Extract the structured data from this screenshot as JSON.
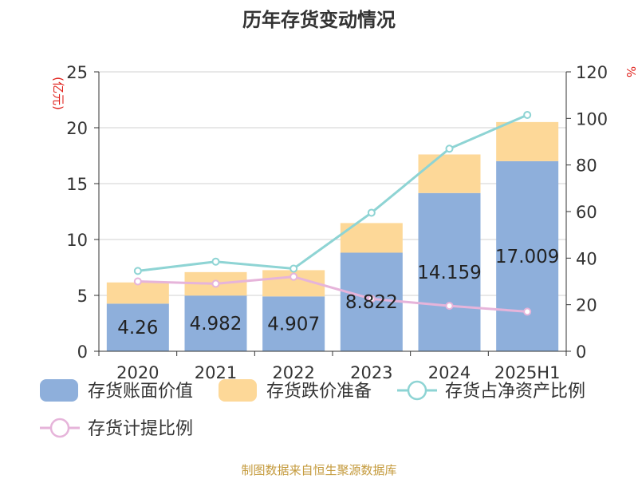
{
  "chart_data": {
    "type": "bar",
    "title": "历年存货变动情况",
    "ylabel_left": "(亿元)",
    "ylabel_right": "%",
    "categories": [
      "2020",
      "2021",
      "2022",
      "2023",
      "2024",
      "2025H1"
    ],
    "ylim_left": [
      0,
      25
    ],
    "yticks_left": [
      0,
      5,
      10,
      15,
      20,
      25
    ],
    "ylim_right": [
      0,
      120
    ],
    "yticks_right": [
      0,
      20,
      40,
      60,
      80,
      100,
      120
    ],
    "stacked": true,
    "grid": true,
    "legend_position": "bottom",
    "series": [
      {
        "name": "存货账面价值",
        "type": "bar",
        "axis": "left",
        "color": "#8eafdb",
        "values": [
          4.26,
          4.982,
          4.907,
          8.822,
          14.159,
          17.009
        ],
        "labels": [
          "4.26",
          "4.982",
          "4.907",
          "8.822",
          "14.159",
          "17.009"
        ]
      },
      {
        "name": "存货跌价准备",
        "type": "bar",
        "axis": "left",
        "color": "#fdd898",
        "values": [
          1.9,
          2.1,
          2.35,
          2.65,
          3.45,
          3.5
        ]
      },
      {
        "name": "存货占净资产比例",
        "type": "line",
        "axis": "right",
        "color": "#8ed4d4",
        "values": [
          34.5,
          38.5,
          35.5,
          59.5,
          87,
          101.5
        ]
      },
      {
        "name": "存货计提比例",
        "type": "line",
        "axis": "right",
        "color": "#e6b4da",
        "values": [
          30,
          29,
          32,
          22.5,
          19.5,
          17
        ]
      }
    ],
    "source_note": "制图数据来自恒生聚源数据库"
  }
}
